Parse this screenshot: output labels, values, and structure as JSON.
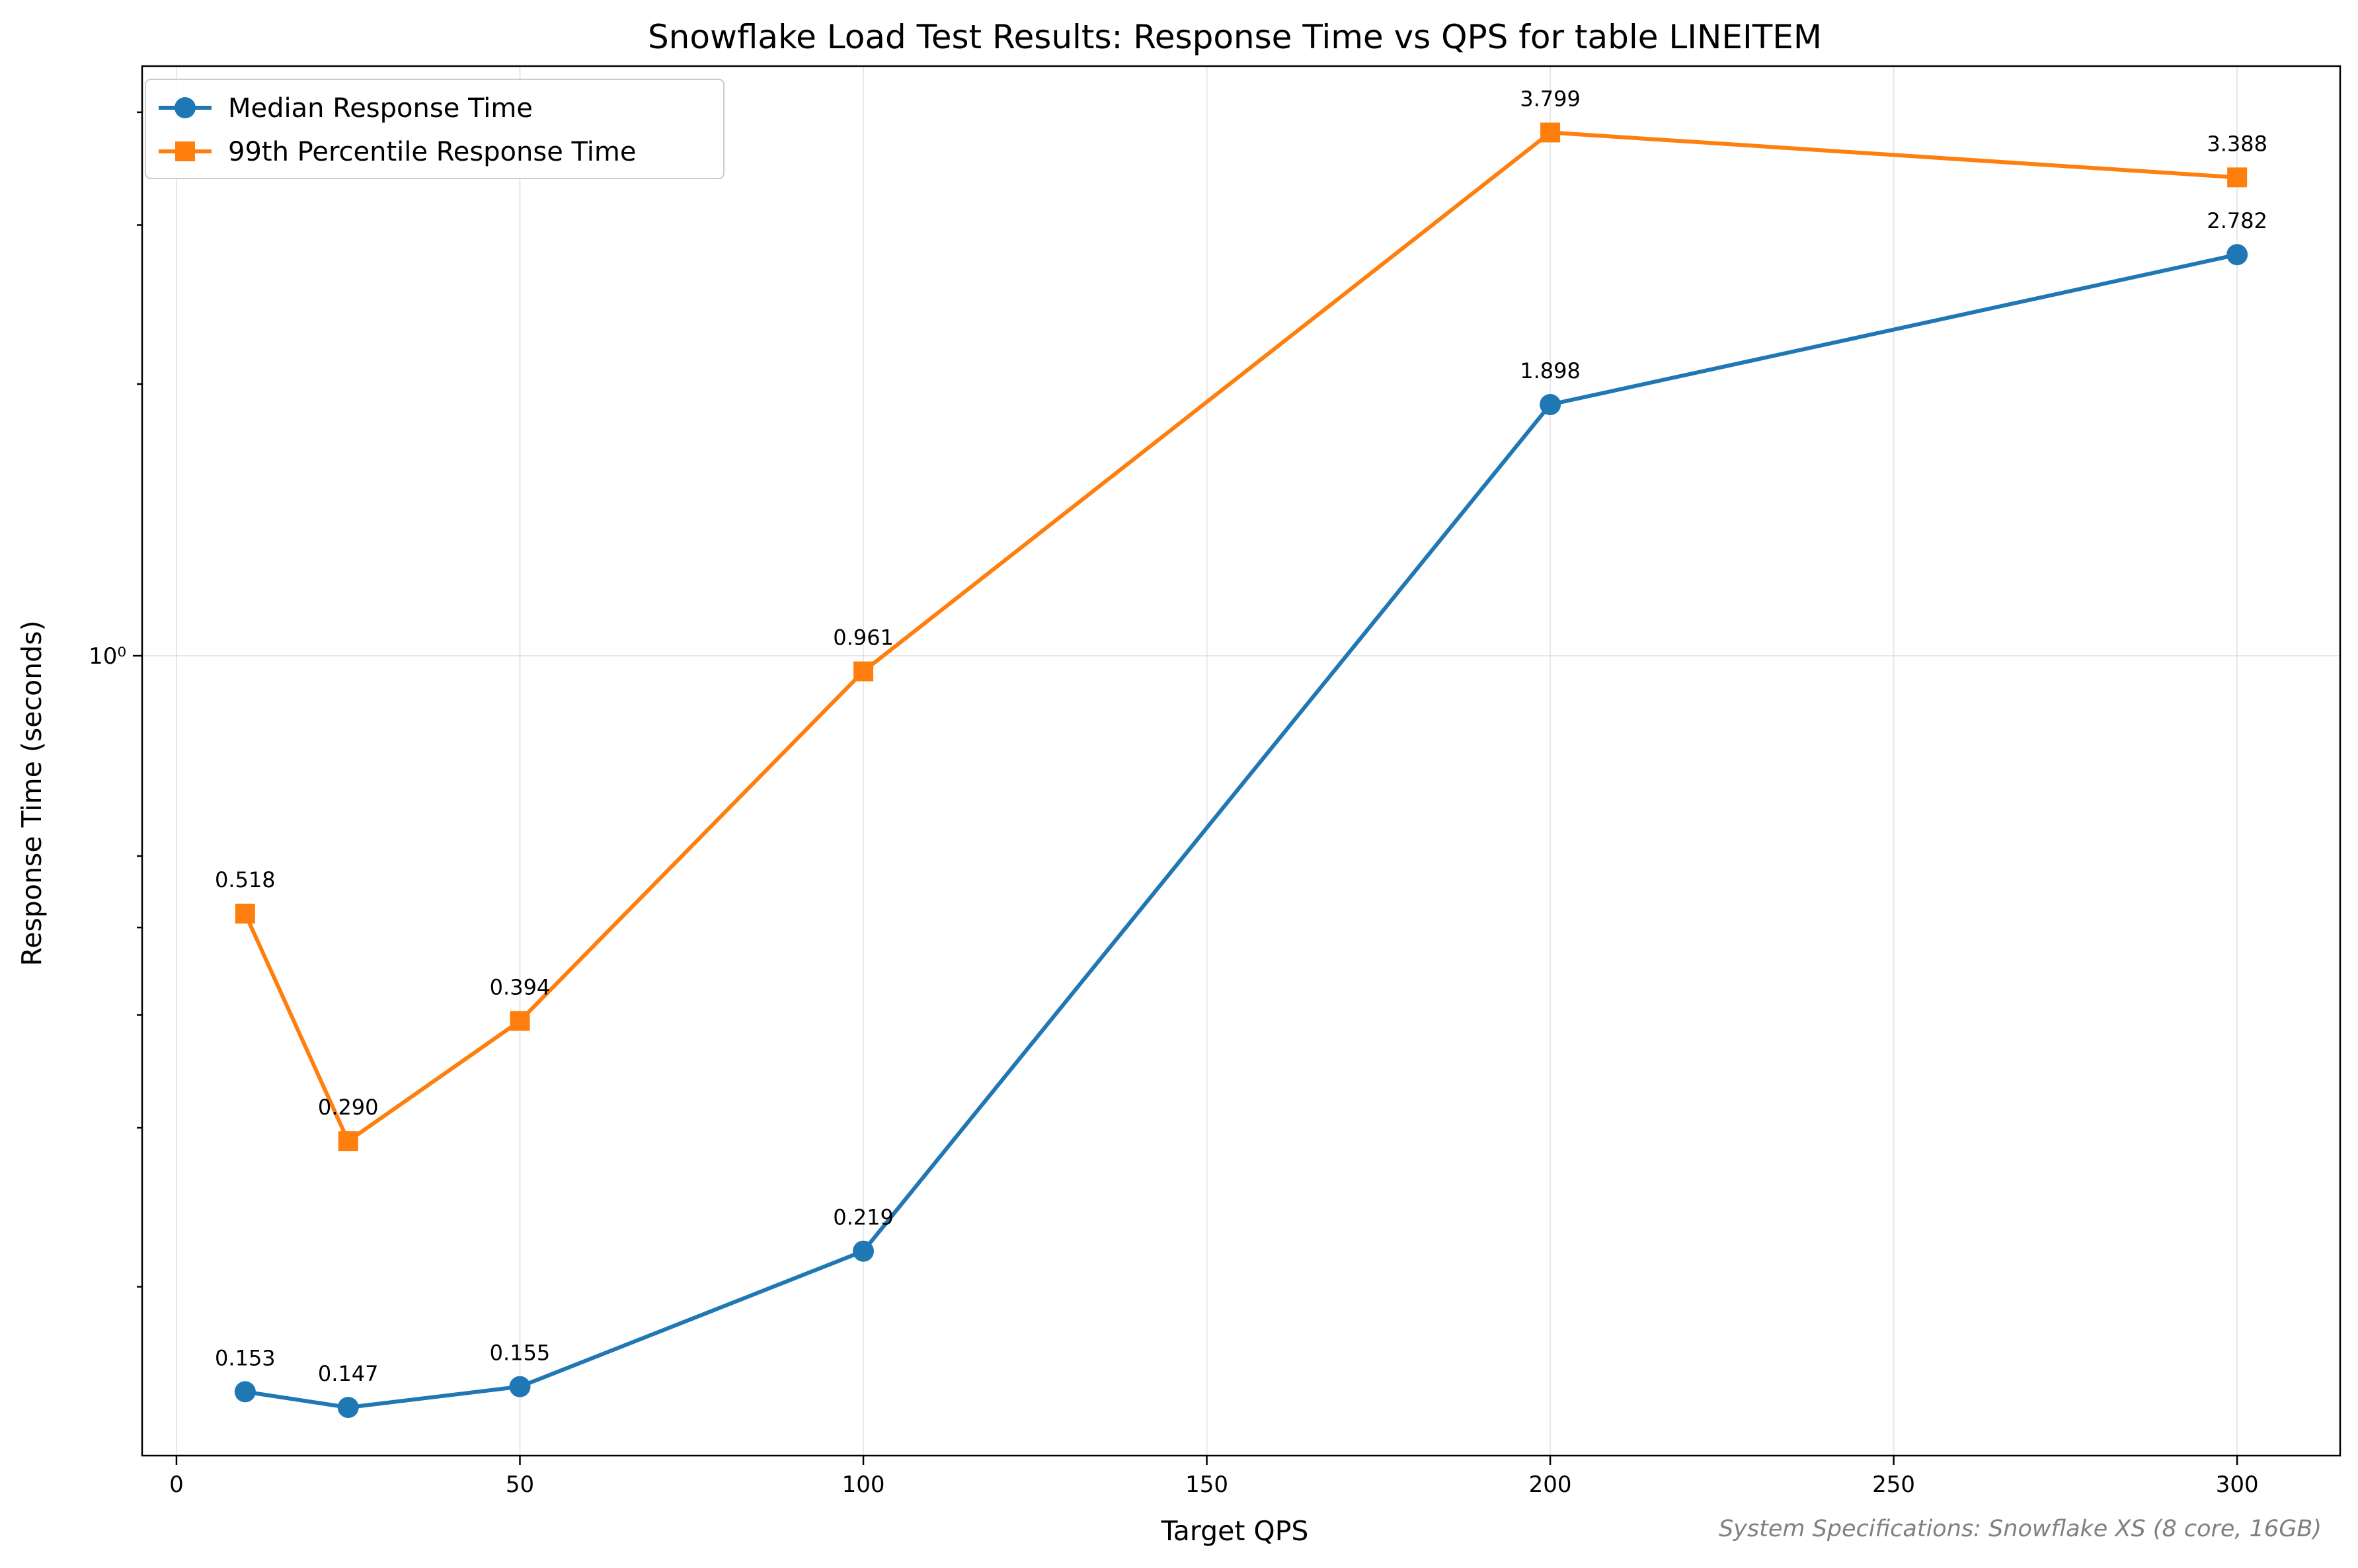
{
  "chart_data": {
    "type": "line",
    "title": "Snowflake Load Test Results: Response Time vs QPS for table LINEITEM",
    "xlabel": "Target QPS",
    "ylabel": "Response Time (seconds)",
    "xlim": [
      -5,
      315
    ],
    "ylim": [
      0.13,
      4.5
    ],
    "yscale": "log",
    "x": [
      10,
      25,
      50,
      100,
      200,
      300
    ],
    "xticks": [
      0,
      50,
      100,
      150,
      200,
      250,
      300
    ],
    "yticks": [
      1.0
    ],
    "ytick_labels": [
      "10⁰"
    ],
    "grid": true,
    "legend_position": "top-left",
    "series": [
      {
        "name": "Median Response Time",
        "marker": "circle",
        "color": "#1f77b4",
        "values": [
          0.153,
          0.147,
          0.155,
          0.219,
          1.898,
          2.782
        ],
        "labels": [
          "0.153",
          "0.147",
          "0.155",
          "0.219",
          "1.898",
          "2.782"
        ]
      },
      {
        "name": "99th Percentile Response Time",
        "marker": "square",
        "color": "#ff7f0e",
        "values": [
          0.518,
          0.29,
          0.394,
          0.961,
          3.799,
          3.388
        ],
        "labels": [
          "0.518",
          "0.290",
          "0.394",
          "0.961",
          "3.799",
          "3.388"
        ]
      }
    ]
  },
  "footnote": "System Specifications: Snowflake XS (8 core, 16GB)"
}
